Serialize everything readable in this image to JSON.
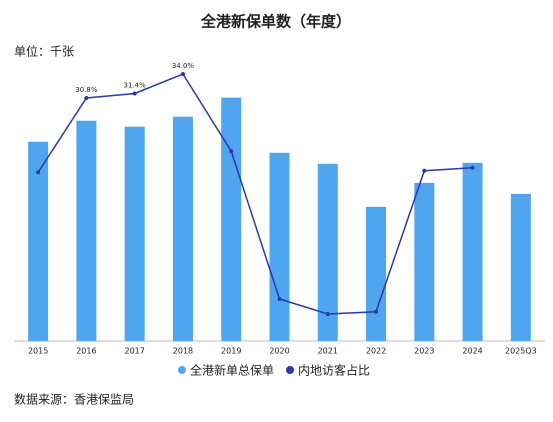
{
  "chart_data": {
    "type": "bar_line",
    "title": "全港新保单数（年度）",
    "subtitle": "单位：千张",
    "source": "数据来源：香港保监局",
    "categories": [
      "2015",
      "2016",
      "2017",
      "2018",
      "2019",
      "2020",
      "2021",
      "2022",
      "2023",
      "2024",
      "2025Q3"
    ],
    "series": [
      {
        "name": "全港新单总保单",
        "color": "#4fa6ee",
        "type": "bar",
        "values": [
          1771,
          1958,
          1905,
          1994,
          2163,
          1673,
          1575,
          1193,
          1406,
          1584,
          1308
        ]
      },
      {
        "name": "内地访客占比",
        "color": "#2a37b0",
        "type": "line",
        "axis": "y2",
        "values": [
          20.9,
          30.8,
          31.4,
          34.0,
          23.7,
          4.0,
          2.0,
          2.3,
          21.1,
          21.5,
          null
        ],
        "value_labels": [
          null,
          "30.8%",
          "31.4%",
          "34.0%",
          null,
          null,
          null,
          null,
          null,
          null,
          null
        ]
      }
    ],
    "ylim": [
      0,
      2400
    ],
    "y2lim": [
      -1.6,
      34.4
    ]
  }
}
